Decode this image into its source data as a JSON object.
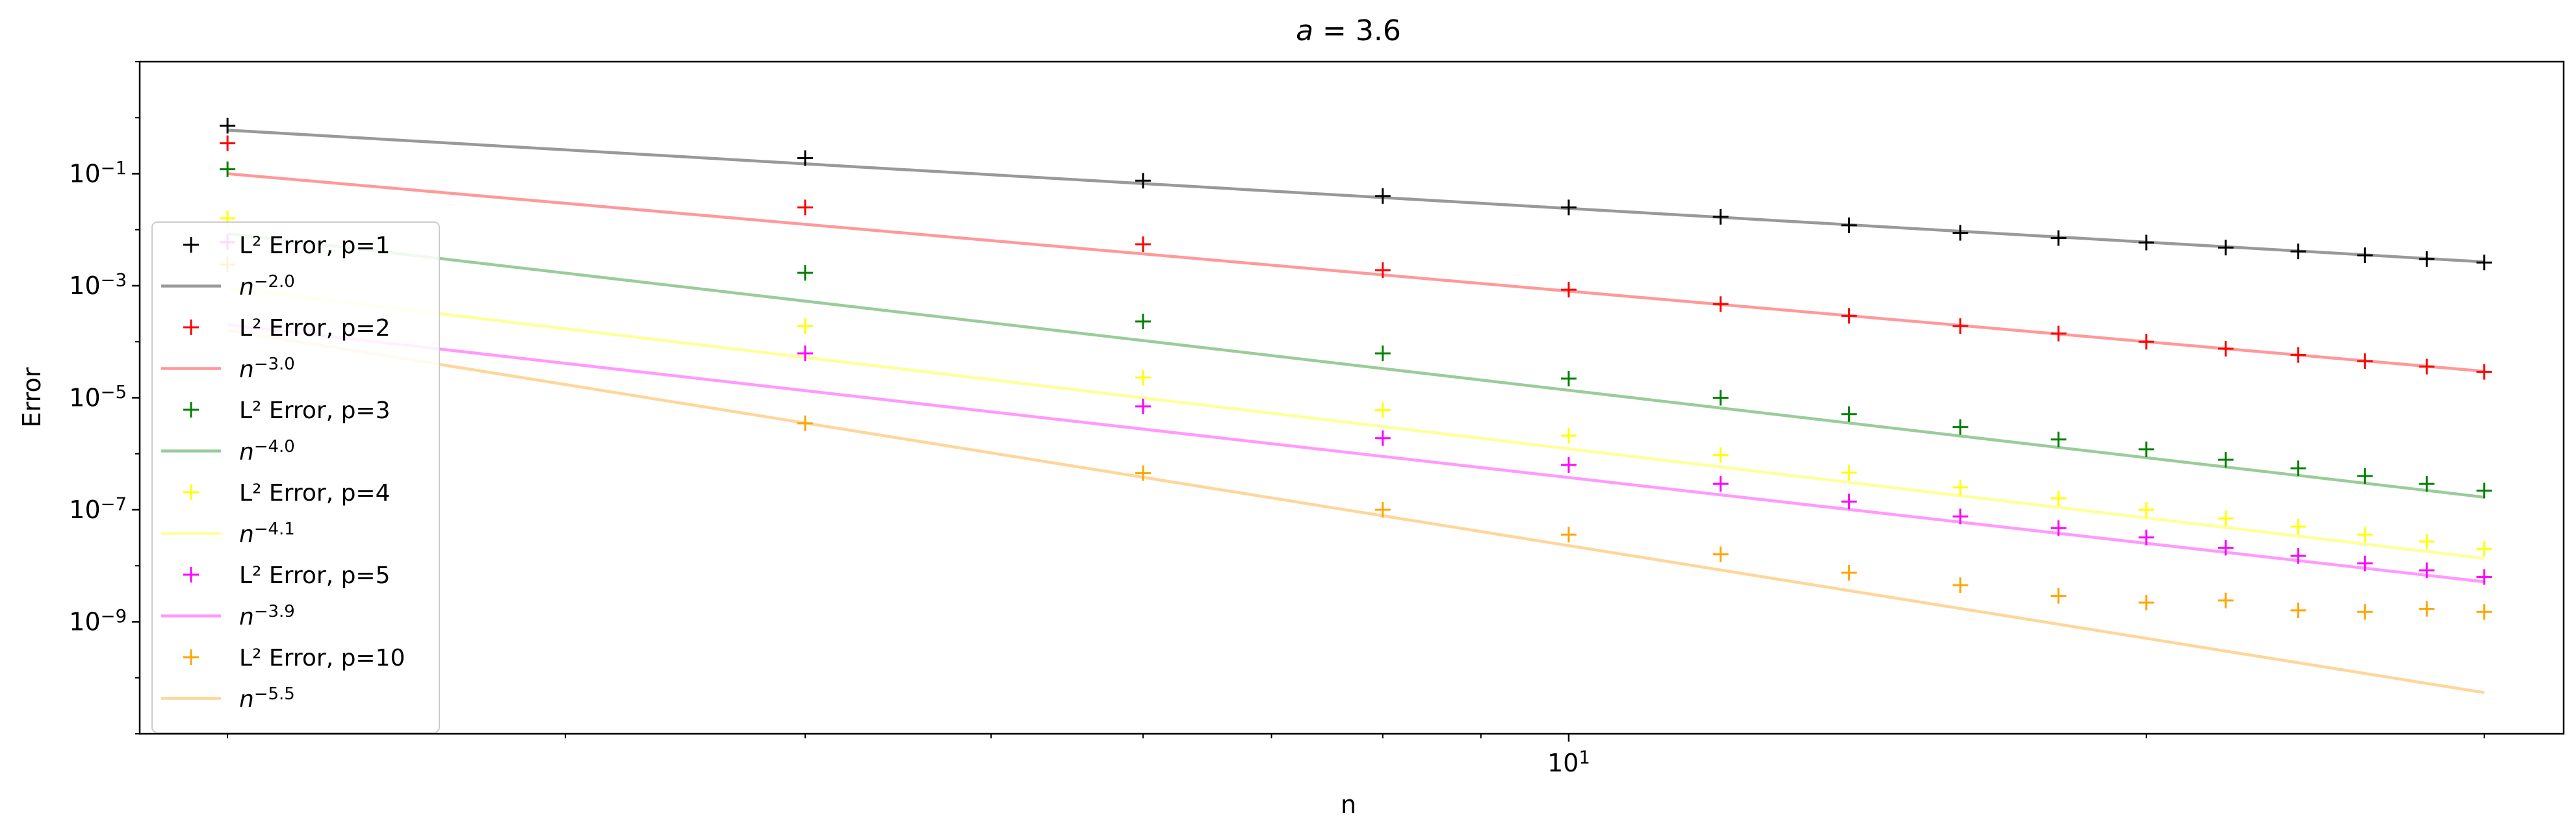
{
  "chart_data": {
    "type": "scatter",
    "title": "a = 3.6",
    "xlabel": "n",
    "ylabel": "Error",
    "xscale": "log",
    "yscale": "log",
    "xlim": [
      1.8,
      33
    ],
    "ylim": [
      1e-11,
      10
    ],
    "x_tick_labels": [
      {
        "value": 10,
        "base": "10",
        "exp": "1"
      }
    ],
    "y_tick_labels": [
      {
        "value": 0.1,
        "base": "10",
        "exp": "−1"
      },
      {
        "value": 0.001,
        "base": "10",
        "exp": "−3"
      },
      {
        "value": 1e-05,
        "base": "10",
        "exp": "−5"
      },
      {
        "value": 1e-07,
        "base": "10",
        "exp": "−7"
      },
      {
        "value": 1e-09,
        "base": "10",
        "exp": "−9"
      }
    ],
    "legend_position": "left",
    "grid": false,
    "x": [
      2,
      4,
      6,
      8,
      10,
      12,
      14,
      16,
      18,
      20,
      22,
      24,
      26,
      28,
      30
    ],
    "series": [
      {
        "name": "L² Error, p=1",
        "color": "#000000",
        "values": [
          0.72,
          0.19,
          0.075,
          0.04,
          0.025,
          0.017,
          0.012,
          0.0088,
          0.0071,
          0.0059,
          0.0048,
          0.0041,
          0.0035,
          0.003,
          0.0026
        ],
        "fit": {
          "label_base": "n",
          "label_exp": "−2.0",
          "color": "#999999",
          "exponent": -2.0,
          "at_x2": 0.6
        }
      },
      {
        "name": "L² Error, p=2",
        "color": "#ff0000",
        "values": [
          0.35,
          0.025,
          0.0055,
          0.0019,
          0.00085,
          0.00047,
          0.00029,
          0.00019,
          0.00014,
          0.0001,
          7.5e-05,
          5.8e-05,
          4.5e-05,
          3.6e-05,
          2.9e-05
        ],
        "fit": {
          "label_base": "n",
          "label_exp": "−3.0",
          "color": "#ff9999",
          "exponent": -3.0,
          "at_x2": 0.1
        }
      },
      {
        "name": "L² Error, p=3",
        "color": "#008000",
        "values": [
          0.12,
          0.0017,
          0.00023,
          6.2e-05,
          2.2e-05,
          1e-05,
          5.1e-06,
          3e-06,
          1.8e-06,
          1.2e-06,
          7.8e-07,
          5.5e-07,
          4e-07,
          2.9e-07,
          2.2e-07
        ],
        "fit": {
          "label_base": "n",
          "label_exp": "−4.0",
          "color": "#99cc99",
          "exponent": -4.0,
          "at_x2": 0.0085
        }
      },
      {
        "name": "L² Error, p=4",
        "color": "#ffff00",
        "values": [
          0.016,
          0.00019,
          2.3e-05,
          6e-06,
          2.1e-06,
          9.5e-07,
          4.6e-07,
          2.5e-07,
          1.6e-07,
          1e-07,
          7e-08,
          5e-08,
          3.6e-08,
          2.7e-08,
          2e-08
        ],
        "fit": {
          "label_base": "n",
          "label_exp": "−4.1",
          "color": "#ffff99",
          "exponent": -4.1,
          "at_x2": 0.0009
        }
      },
      {
        "name": "L² Error, p=5",
        "color": "#ff00ff",
        "values": [
          0.006,
          6.2e-05,
          7e-06,
          1.9e-06,
          6.3e-07,
          2.9e-07,
          1.4e-07,
          7.6e-08,
          4.7e-08,
          3.2e-08,
          2.1e-08,
          1.5e-08,
          1.1e-08,
          8.3e-09,
          6.3e-09
        ],
        "fit": {
          "label_base": "n",
          "label_exp": "−3.9",
          "color": "#ff99ff",
          "exponent": -3.9,
          "at_x2": 0.0002
        }
      },
      {
        "name": "L² Error, p=10",
        "color": "#ffa500",
        "values": [
          0.0024,
          3.5e-06,
          4.5e-07,
          1e-07,
          3.6e-08,
          1.6e-08,
          7.5e-09,
          4.5e-09,
          2.9e-09,
          2.2e-09,
          2.4e-09,
          1.6e-09,
          1.5e-09,
          1.7e-09,
          1.5e-09
        ],
        "fit": {
          "label_base": "n",
          "label_exp": "−5.5",
          "color": "#ffd699",
          "exponent": -5.5,
          "at_x2": 0.00016
        }
      }
    ]
  }
}
